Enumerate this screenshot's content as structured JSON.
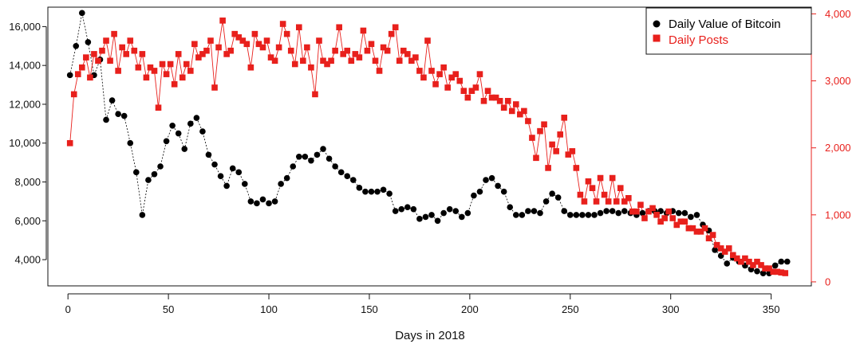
{
  "chart_data": {
    "type": "scatter",
    "title": "",
    "xlabel": "Days in 2018",
    "ylabel": "",
    "ylabel_right": "",
    "xlim": [
      -10,
      370
    ],
    "ylim": [
      2650,
      17000
    ],
    "ylim_right": [
      -60,
      4100
    ],
    "x_ticks": [
      0,
      50,
      100,
      150,
      200,
      250,
      300,
      350
    ],
    "x_tick_labels": [
      "0",
      "50",
      "100",
      "150",
      "200",
      "250",
      "300",
      "350"
    ],
    "y_ticks": [
      4000,
      6000,
      8000,
      10000,
      12000,
      14000,
      16000
    ],
    "y_tick_labels": [
      "4,000",
      "6,000",
      "8,000",
      "10,000",
      "12,000",
      "14,000",
      "16,000"
    ],
    "y_right_ticks": [
      0,
      1000,
      2000,
      3000,
      4000
    ],
    "y_right_tick_labels": [
      "0",
      "1,000",
      "2,000",
      "3,000",
      "4,000"
    ],
    "legend": {
      "position": "top-right",
      "entries": [
        "Daily Value of Bitcoin",
        "Daily Posts"
      ]
    },
    "colors": {
      "btc": "#000000",
      "posts": "#e8201c",
      "right_axis": "#e8201c",
      "axis": "#111111"
    },
    "series": [
      {
        "name": "Daily Value of Bitcoin",
        "axis": "left",
        "marker": "circle",
        "x": [
          1,
          4,
          7,
          10,
          13,
          16,
          19,
          22,
          25,
          28,
          31,
          34,
          37,
          40,
          43,
          46,
          49,
          52,
          55,
          58,
          61,
          64,
          67,
          70,
          73,
          76,
          79,
          82,
          85,
          88,
          91,
          94,
          97,
          100,
          103,
          106,
          109,
          112,
          115,
          118,
          121,
          124,
          127,
          130,
          133,
          136,
          139,
          142,
          145,
          148,
          151,
          154,
          157,
          160,
          163,
          166,
          169,
          172,
          175,
          178,
          181,
          184,
          187,
          190,
          193,
          196,
          199,
          202,
          205,
          208,
          211,
          214,
          217,
          220,
          223,
          226,
          229,
          232,
          235,
          238,
          241,
          244,
          247,
          250,
          253,
          256,
          259,
          262,
          265,
          268,
          271,
          274,
          277,
          280,
          283,
          286,
          289,
          292,
          295,
          298,
          301,
          304,
          307,
          310,
          313,
          316,
          319,
          322,
          325,
          328,
          331,
          334,
          337,
          340,
          343,
          346,
          349,
          352,
          355,
          358
        ],
        "values": [
          13500,
          15000,
          16700,
          15200,
          13500,
          14300,
          11200,
          12200,
          11500,
          11400,
          10000,
          8500,
          6300,
          8100,
          8400,
          8800,
          10100,
          10900,
          10500,
          9700,
          11000,
          11300,
          10600,
          9400,
          8900,
          8300,
          7800,
          8700,
          8500,
          7900,
          7000,
          6900,
          7100,
          6900,
          7000,
          7900,
          8200,
          8800,
          9300,
          9300,
          9100,
          9400,
          9700,
          9200,
          8800,
          8500,
          8300,
          8100,
          7700,
          7500,
          7500,
          7500,
          7600,
          7400,
          6500,
          6600,
          6700,
          6600,
          6100,
          6200,
          6300,
          6000,
          6400,
          6600,
          6500,
          6200,
          6400,
          7300,
          7500,
          8100,
          8200,
          7800,
          7500,
          6700,
          6300,
          6300,
          6500,
          6500,
          6400,
          7000,
          7400,
          7200,
          6500,
          6300,
          6300,
          6300,
          6300,
          6300,
          6400,
          6500,
          6500,
          6400,
          6500,
          6400,
          6300,
          6400,
          6500,
          6500,
          6500,
          6400,
          6500,
          6400,
          6400,
          6200,
          6300,
          5800,
          5500,
          4500,
          4200,
          3800,
          4100,
          3900,
          3700,
          3500,
          3400,
          3300,
          3300,
          3700,
          3900,
          3900
        ]
      },
      {
        "name": "Daily Posts",
        "axis": "right",
        "marker": "square",
        "x": [
          1,
          3,
          5,
          7,
          9,
          11,
          13,
          15,
          17,
          19,
          21,
          23,
          25,
          27,
          29,
          31,
          33,
          35,
          37,
          39,
          41,
          43,
          45,
          47,
          49,
          51,
          53,
          55,
          57,
          59,
          61,
          63,
          65,
          67,
          69,
          71,
          73,
          75,
          77,
          79,
          81,
          83,
          85,
          87,
          89,
          91,
          93,
          95,
          97,
          99,
          101,
          103,
          105,
          107,
          109,
          111,
          113,
          115,
          117,
          119,
          121,
          123,
          125,
          127,
          129,
          131,
          133,
          135,
          137,
          139,
          141,
          143,
          145,
          147,
          149,
          151,
          153,
          155,
          157,
          159,
          161,
          163,
          165,
          167,
          169,
          171,
          173,
          175,
          177,
          179,
          181,
          183,
          185,
          187,
          189,
          191,
          193,
          195,
          197,
          199,
          201,
          203,
          205,
          207,
          209,
          211,
          213,
          215,
          217,
          219,
          221,
          223,
          225,
          227,
          229,
          231,
          233,
          235,
          237,
          239,
          241,
          243,
          245,
          247,
          249,
          251,
          253,
          255,
          257,
          259,
          261,
          263,
          265,
          267,
          269,
          271,
          273,
          275,
          277,
          279,
          281,
          283,
          285,
          287,
          289,
          291,
          293,
          295,
          297,
          299,
          301,
          303,
          305,
          307,
          309,
          311,
          313,
          315,
          317,
          319,
          321,
          323,
          325,
          327,
          329,
          331,
          333,
          335,
          337,
          339,
          341,
          343,
          345,
          347,
          349,
          351,
          353,
          355,
          357
        ],
        "values": [
          2070,
          2800,
          3100,
          3200,
          3350,
          3050,
          3400,
          3300,
          3450,
          3600,
          3300,
          3700,
          3150,
          3500,
          3400,
          3600,
          3450,
          3200,
          3400,
          3050,
          3200,
          3150,
          2600,
          3250,
          3100,
          3250,
          2950,
          3400,
          3050,
          3250,
          3150,
          3550,
          3350,
          3400,
          3450,
          3600,
          2900,
          3500,
          3900,
          3400,
          3450,
          3700,
          3650,
          3600,
          3550,
          3200,
          3700,
          3550,
          3500,
          3600,
          3350,
          3300,
          3500,
          3850,
          3700,
          3450,
          3250,
          3800,
          3300,
          3500,
          3200,
          2800,
          3600,
          3300,
          3250,
          3300,
          3450,
          3800,
          3400,
          3450,
          3300,
          3400,
          3350,
          3750,
          3450,
          3550,
          3300,
          3150,
          3500,
          3450,
          3700,
          3800,
          3300,
          3450,
          3400,
          3300,
          3350,
          3150,
          3050,
          3600,
          3150,
          2950,
          3100,
          3200,
          2900,
          3050,
          3100,
          3000,
          2850,
          2750,
          2850,
          2900,
          3100,
          2700,
          2850,
          2750,
          2750,
          2700,
          2600,
          2700,
          2550,
          2650,
          2500,
          2550,
          2400,
          2150,
          1850,
          2250,
          2350,
          1700,
          2050,
          1950,
          2200,
          2450,
          1900,
          1950,
          1700,
          1300,
          1200,
          1500,
          1400,
          1200,
          1550,
          1300,
          1200,
          1550,
          1200,
          1400,
          1200,
          1250,
          1050,
          1050,
          1150,
          950,
          1050,
          1100,
          1000,
          900,
          950,
          1050,
          950,
          850,
          900,
          900,
          800,
          800,
          750,
          750,
          800,
          650,
          700,
          550,
          500,
          450,
          500,
          400,
          350,
          300,
          350,
          300,
          250,
          300,
          250,
          200,
          200,
          150,
          150,
          140,
          130
        ]
      }
    ]
  }
}
